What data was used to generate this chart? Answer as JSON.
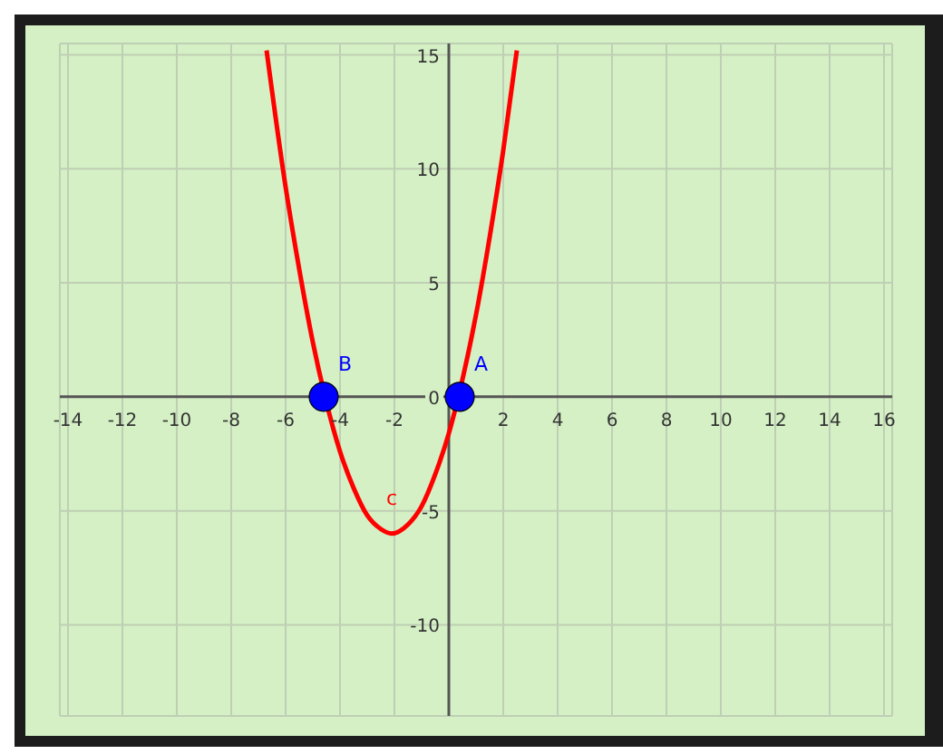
{
  "chart_data": {
    "type": "line",
    "xlim": [
      -14.3,
      16.3
    ],
    "ylim": [
      -14,
      15.5
    ],
    "xticks": [
      -14,
      -12,
      -10,
      -8,
      -6,
      -4,
      -2,
      {
        "value": 0,
        "label": null
      },
      2,
      4,
      6,
      8,
      10,
      12,
      14,
      16
    ],
    "yticks": [
      -10,
      -5,
      0,
      5,
      10,
      15
    ],
    "grid": true,
    "legend": false,
    "series": [
      {
        "name": "c",
        "color": "#ff0000",
        "x": [
          -6.7,
          -6,
          -5.5,
          -5,
          -4.55,
          -4,
          -3.5,
          -3,
          -2.5,
          -2.1,
          -1.5,
          -1,
          -0.5,
          0,
          0.35,
          1,
          1.5,
          2,
          2.5
        ],
        "values": [
          15.2,
          9.2,
          5.6,
          2.4,
          0,
          -2.4,
          -4.0,
          -5.2,
          -5.8,
          -6,
          -5.6,
          -4.8,
          -3.4,
          -1.6,
          0,
          3.6,
          7.0,
          10.8,
          15.2
        ]
      },
      {
        "name": "B",
        "type": "scatter",
        "marker": "circle",
        "color": "#0000ff",
        "x": [
          -4.6
        ],
        "values": [
          0
        ]
      },
      {
        "name": "A",
        "type": "scatter",
        "marker": "circle",
        "color": "#0000ff",
        "x": [
          0.4
        ],
        "values": [
          0
        ]
      }
    ]
  }
}
